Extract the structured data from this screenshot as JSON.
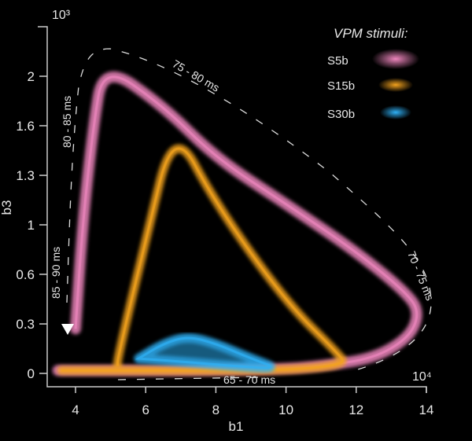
{
  "chart_data": {
    "type": "line",
    "xlabel": "b1",
    "ylabel": "b3",
    "x_multiplier": "10⁴",
    "y_multiplier": "10³",
    "xlim": [
      3.3,
      14
    ],
    "ylim": [
      0,
      2.3
    ],
    "x_ticks": [
      "4",
      "6",
      "8",
      "10",
      "12",
      "14"
    ],
    "x_tick_values": [
      4,
      6,
      8,
      10,
      12,
      14
    ],
    "y_ticks": [
      "0",
      "0.3",
      "0.6",
      "1",
      "1.3",
      "1.6",
      "2"
    ],
    "y_tick_values": [
      0,
      0.333,
      0.667,
      1,
      1.333,
      1.667,
      2
    ],
    "grid": false,
    "legend": {
      "title": "VPM stimuli:",
      "placement": "top-right"
    },
    "series": [
      {
        "name": "S5b",
        "color": "#ee86bd",
        "x": [
          3.5,
          6,
          8,
          10,
          11,
          12.5,
          13.5,
          13.8,
          13.5,
          12,
          10,
          8,
          6.5,
          4.8,
          4.5,
          4.2,
          4.0
        ],
        "y": [
          0.02,
          0.02,
          0.02,
          0.03,
          0.05,
          0.1,
          0.24,
          0.4,
          0.53,
          0.82,
          1.14,
          1.45,
          1.8,
          2.08,
          1.65,
          1.0,
          0.3
        ]
      },
      {
        "name": "S15b",
        "color": "#f2a21e",
        "x": [
          3.6,
          7,
          10,
          11.7,
          11.5,
          10,
          8,
          6.8,
          6,
          5.2,
          5.2
        ],
        "y": [
          0.02,
          0.02,
          0.02,
          0.06,
          0.13,
          0.48,
          1.14,
          1.67,
          0.9,
          0.1,
          0.05
        ]
      },
      {
        "name": "S30b",
        "color": "#2fb0f5",
        "x": [
          5.8,
          6.5,
          7.2,
          8,
          9,
          9.8,
          8.5,
          7,
          5.8
        ],
        "y": [
          0.1,
          0.2,
          0.25,
          0.2,
          0.1,
          0.03,
          0.05,
          0.08,
          0.1
        ]
      }
    ],
    "annotations": [
      "75 - 80 ms",
      "80 - 85 ms",
      "85 - 90 ms",
      "70 - 75 ms",
      "65 - 70 ms"
    ],
    "start_marker": {
      "x": 3.8,
      "y": 0.3,
      "shape": "triangle-down"
    }
  }
}
